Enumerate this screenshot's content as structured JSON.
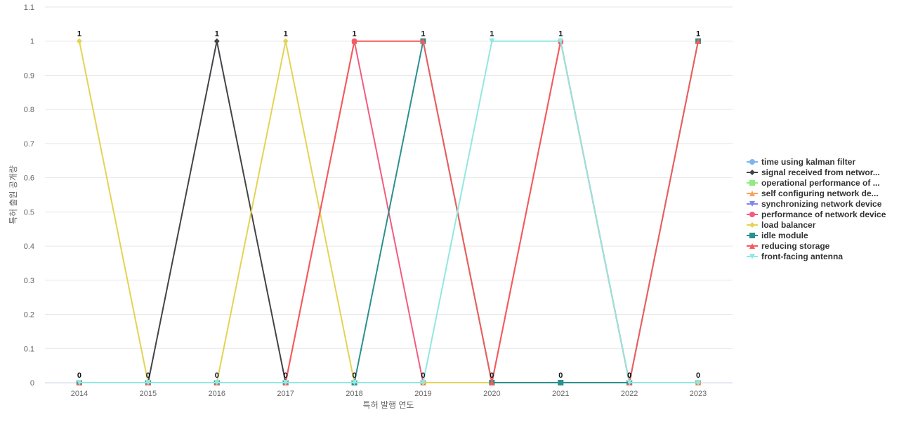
{
  "chart_data": {
    "type": "line",
    "title": "",
    "xlabel": "특허 발행 연도",
    "ylabel": "특허 출원 공개량",
    "ylim": [
      0,
      1.1
    ],
    "yticks": [
      0,
      0.1,
      0.2,
      0.3,
      0.4,
      0.5,
      0.6,
      0.7,
      0.8,
      0.9,
      1,
      1.1
    ],
    "categories": [
      "2014",
      "2015",
      "2016",
      "2017",
      "2018",
      "2019",
      "2020",
      "2021",
      "2022",
      "2023"
    ],
    "grid": true,
    "legend_position": "right",
    "series": [
      {
        "name": "time using kalman filter",
        "color": "#7cb5ec",
        "marker": "circle",
        "values": [
          0,
          0,
          0,
          0,
          0,
          0,
          0,
          0,
          0,
          0
        ]
      },
      {
        "name": "signal received from networ...",
        "color": "#434348",
        "marker": "diamond",
        "values": [
          0,
          0,
          1,
          0,
          0,
          0,
          0,
          0,
          0,
          0
        ]
      },
      {
        "name": "operational performance of ...",
        "color": "#90ed7d",
        "marker": "square",
        "values": [
          0,
          0,
          0,
          0,
          0,
          0,
          0,
          0,
          0,
          0
        ]
      },
      {
        "name": "self configuring network de...",
        "color": "#f7a35c",
        "marker": "triangle",
        "values": [
          0,
          0,
          0,
          0,
          0,
          0,
          0,
          0,
          0,
          0
        ]
      },
      {
        "name": "synchronizing network device",
        "color": "#8085e9",
        "marker": "triangle-down",
        "values": [
          0,
          0,
          0,
          0,
          0,
          0,
          0,
          0,
          0,
          0
        ]
      },
      {
        "name": "performance of network device",
        "color": "#f15c80",
        "marker": "circle",
        "values": [
          0,
          0,
          0,
          0,
          1,
          0,
          0,
          1,
          0,
          0
        ]
      },
      {
        "name": "load balancer",
        "color": "#e4d354",
        "marker": "diamond",
        "values": [
          1,
          0,
          0,
          1,
          0,
          0,
          0,
          0,
          0,
          0
        ]
      },
      {
        "name": "idle module",
        "color": "#2b908f",
        "marker": "square",
        "values": [
          0,
          0,
          0,
          0,
          0,
          1,
          0,
          0,
          0,
          1
        ]
      },
      {
        "name": "reducing storage",
        "color": "#f45b5b",
        "marker": "triangle",
        "values": [
          0,
          0,
          0,
          0,
          1,
          1,
          0,
          1,
          0,
          1
        ]
      },
      {
        "name": "front-facing antenna",
        "color": "#91e8e1",
        "marker": "triangle-down",
        "values": [
          0,
          0,
          0,
          0,
          0,
          0,
          1,
          1,
          0,
          0
        ]
      }
    ],
    "data_labels": [
      "1",
      "0",
      "1",
      "1",
      "1",
      "1",
      "1",
      "1",
      "0",
      "1"
    ],
    "data_labels_low": [
      "0",
      "",
      "0",
      "0",
      "0",
      "0",
      "0",
      "0",
      "0",
      "0"
    ]
  }
}
